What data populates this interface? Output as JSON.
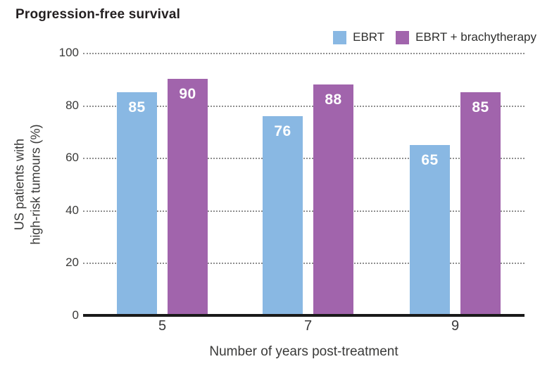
{
  "title": "Progression-free survival",
  "chart_data": {
    "type": "bar",
    "title": "Progression-free survival",
    "categories": [
      "5",
      "7",
      "9"
    ],
    "series": [
      {
        "name": "EBRT",
        "color": "#89B8E3",
        "values": [
          85,
          76,
          65
        ]
      },
      {
        "name": "EBRT + brachytherapy",
        "color": "#A164AC",
        "values": [
          90,
          88,
          85
        ]
      }
    ],
    "xlabel": "Number of years post-treatment",
    "ylabel": "US patients with high-risk tumours (%)",
    "ylabel_lines": [
      "US patients with",
      "high-risk tumours (%)"
    ],
    "ylim": [
      0,
      100
    ],
    "yticks": [
      0,
      20,
      40,
      60,
      80,
      100
    ],
    "grid": "dotted horizontal gridlines",
    "legend_position": "top-right",
    "bar_value_labels": true,
    "value_label_color": "#ffffff",
    "axis_line_color": "#1a1a1a",
    "gridline_color": "#8f8f8f"
  }
}
